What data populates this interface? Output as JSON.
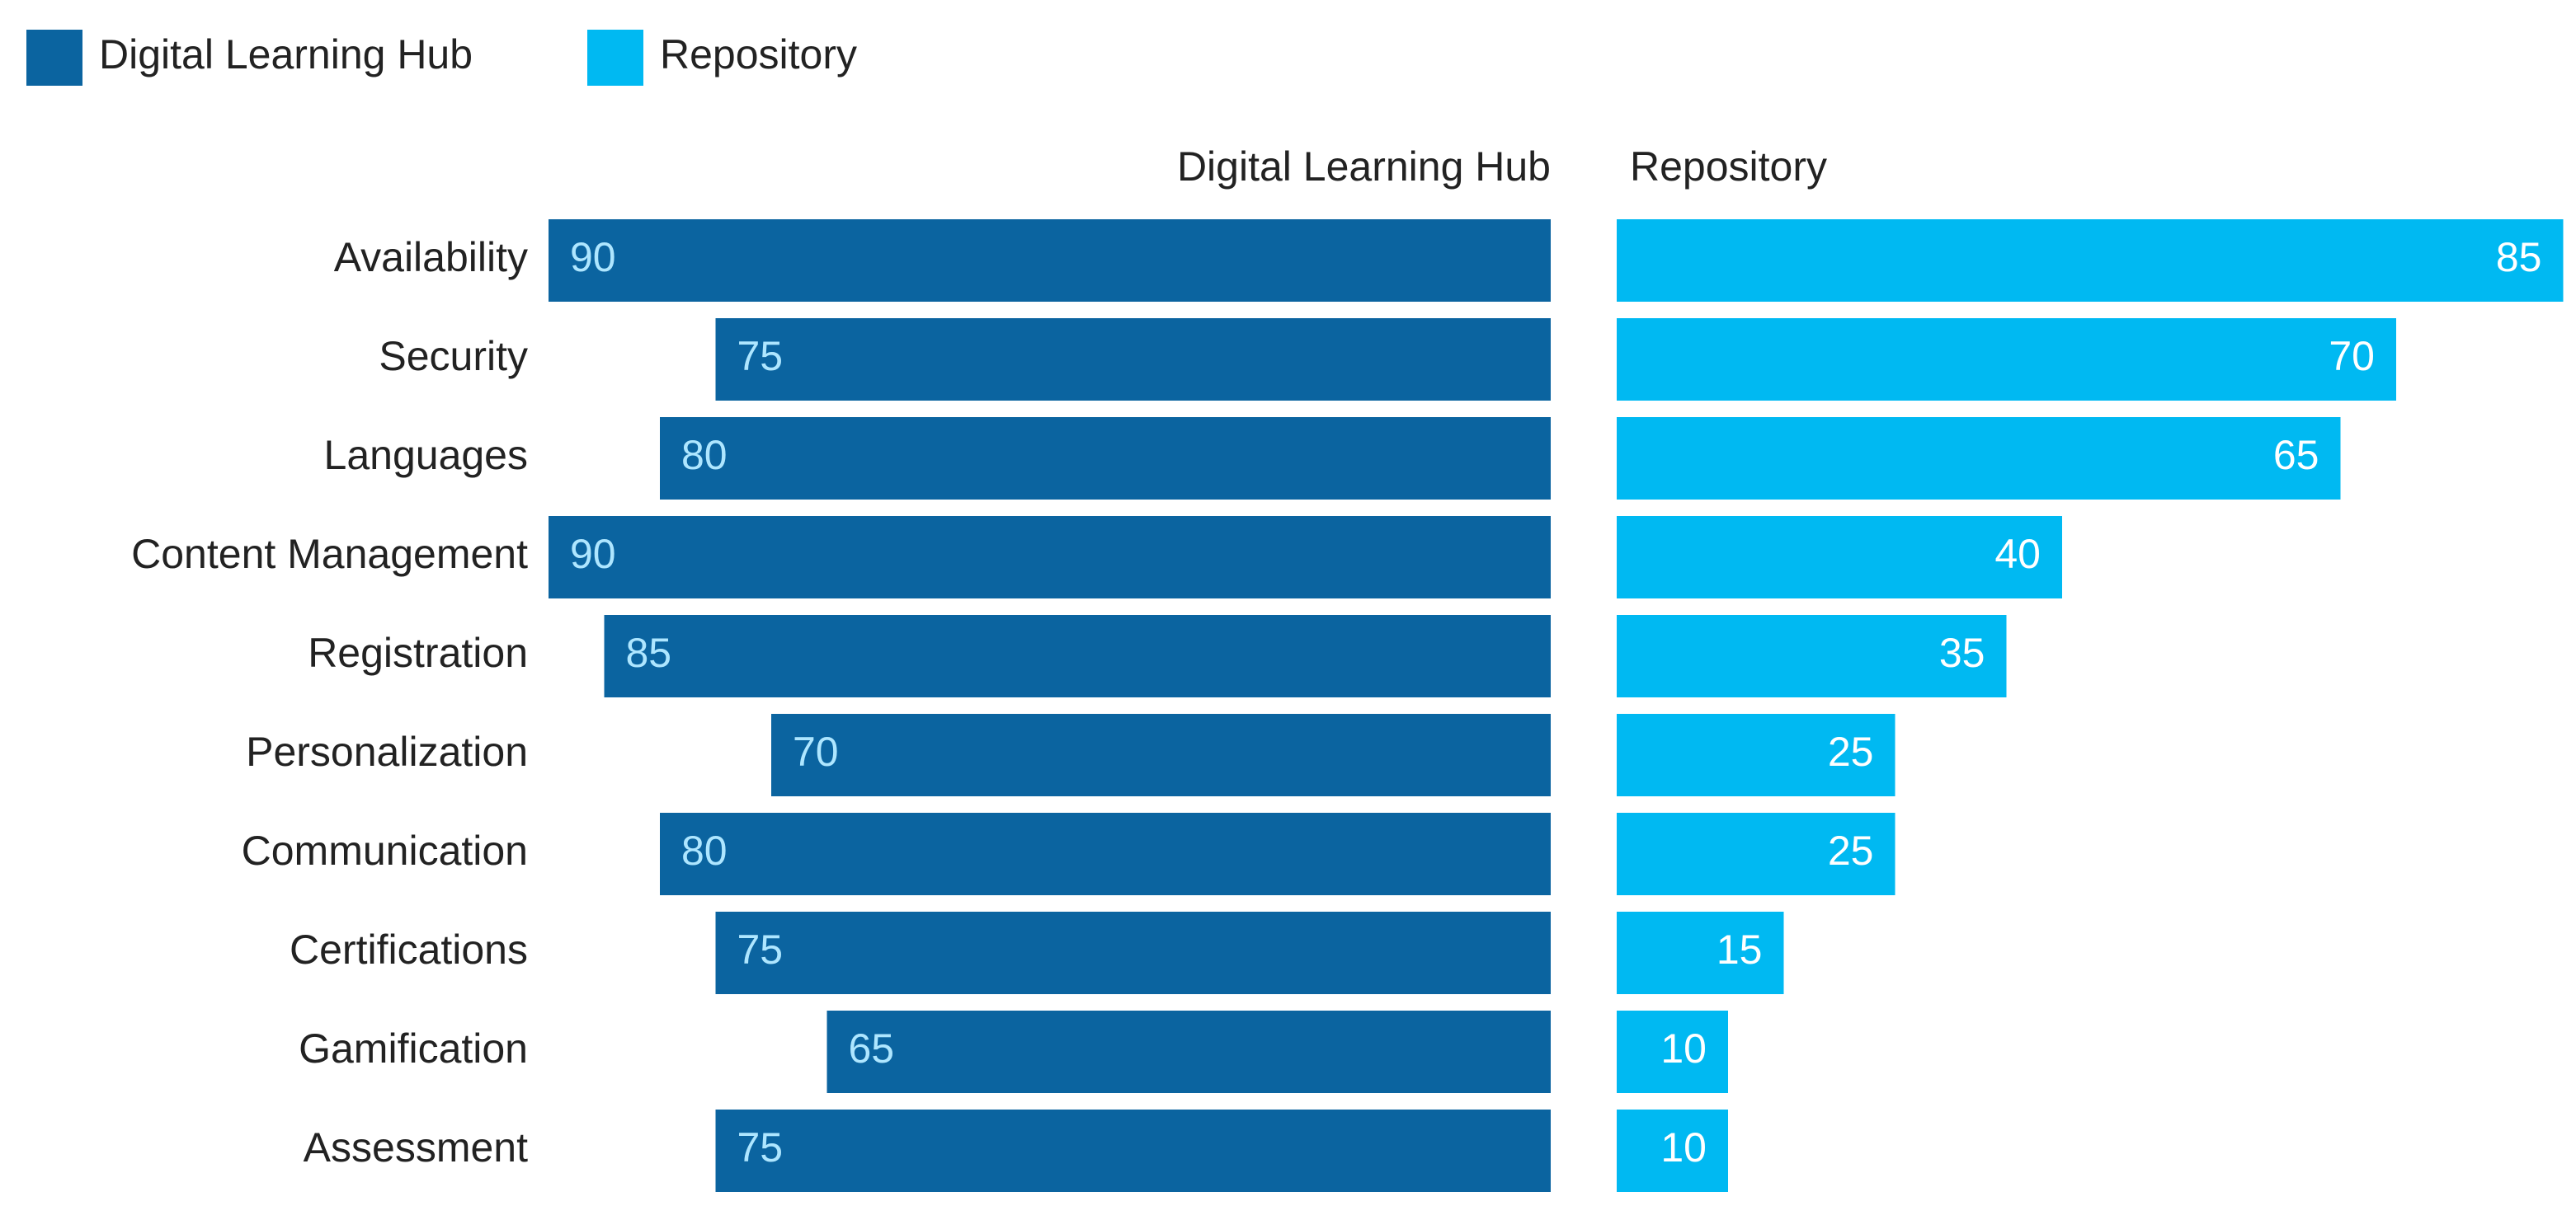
{
  "chart_data": {
    "type": "butterfly-bar",
    "categories": [
      "Availability",
      "Security",
      "Languages",
      "Content Management",
      "Registration",
      "Personalization",
      "Communication",
      "Certifications",
      "Gamification",
      "Assessment"
    ],
    "series": [
      {
        "name": "Digital Learning Hub",
        "color": "#0b64a0",
        "label_color": "#aee6ff",
        "values": [
          90,
          75,
          80,
          90,
          85,
          70,
          80,
          75,
          65,
          75
        ]
      },
      {
        "name": "Repository",
        "color": "#00b9f2",
        "label_color": "#ffffff",
        "values": [
          85,
          70,
          65,
          40,
          35,
          25,
          25,
          15,
          10,
          10
        ]
      }
    ],
    "xlim": [
      0,
      90
    ],
    "legend": "top-left"
  }
}
